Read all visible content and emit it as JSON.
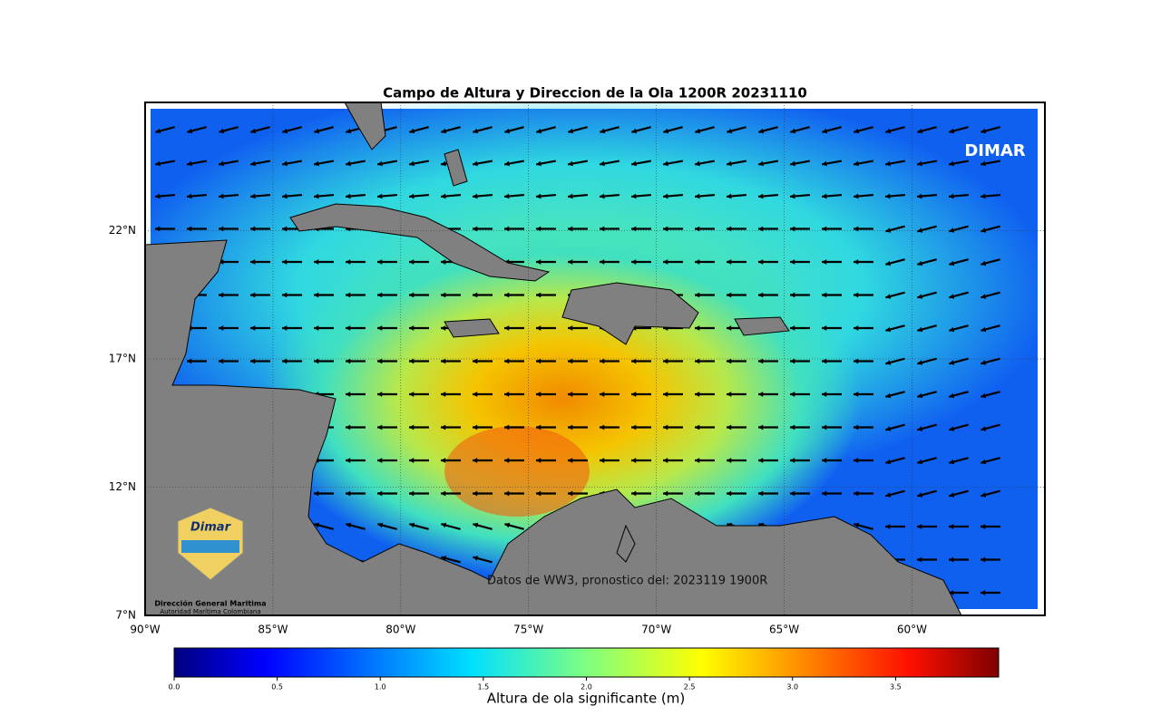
{
  "title": "Campo de Altura y Direccion de la Ola 1200R 20231110",
  "map": {
    "lon_lim": [
      -90,
      -54.8
    ],
    "lat_lim": [
      7,
      27
    ],
    "lat_ticks": [
      {
        "value": 7,
        "label": "7°N"
      },
      {
        "value": 12,
        "label": "12°N"
      },
      {
        "value": 17,
        "label": "17°N"
      },
      {
        "value": 22,
        "label": "22°N"
      }
    ],
    "lon_ticks": [
      {
        "value": -90,
        "label": "90°W"
      },
      {
        "value": -85,
        "label": "85°W"
      },
      {
        "value": -80,
        "label": "80°W"
      },
      {
        "value": -75,
        "label": "75°W"
      },
      {
        "value": -70,
        "label": "70°W"
      },
      {
        "value": -65,
        "label": "65°W"
      },
      {
        "value": -60,
        "label": "60°W"
      }
    ],
    "watermark": "DIMAR",
    "note": "Datos de WW3, pronostico del: 2023119 1900R"
  },
  "logo": {
    "brand": "Dimar",
    "name": "Dirección General Maritima",
    "subtitle": "Autoridad Marítima Colombiana"
  },
  "colorbar": {
    "label": "Altura de ola significante (m)",
    "lim": [
      0,
      4
    ],
    "ticks": [
      {
        "value": 0,
        "label": "0.0"
      },
      0.5,
      {
        "value": 1,
        "label": "1.0"
      },
      1.5,
      {
        "value": 2,
        "label": "2.0"
      },
      2.5,
      {
        "value": 3,
        "label": "3.0"
      },
      3.5
    ]
  }
}
